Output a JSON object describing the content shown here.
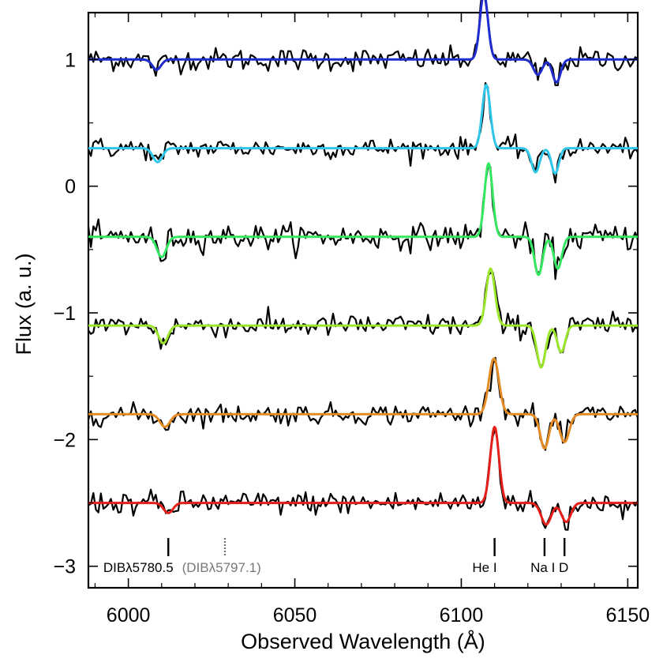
{
  "chart_data": {
    "type": "line",
    "xlabel": "Observed Wavelength (Å)",
    "ylabel": "Flux (a. u.)",
    "xlim": [
      5988,
      6153
    ],
    "ylim": [
      -3.17,
      1.37
    ],
    "x_ticks": [
      "6000",
      "6050",
      "6100",
      "6150"
    ],
    "x_tick_values": [
      6000,
      6050,
      6100,
      6150
    ],
    "y_ticks": [
      "1",
      "0",
      "−1",
      "−2",
      "−3"
    ],
    "y_tick_values": [
      1,
      0,
      -1,
      -2,
      -3
    ],
    "grid": false,
    "line_annotations": [
      {
        "label": "DIBλ5780.5",
        "x": 6012,
        "style": "solid",
        "color": "#000000",
        "text_x": 6003
      },
      {
        "label": "(DIBλ5797.1)",
        "x": 6029,
        "style": "dotted",
        "color": "#777777",
        "text_x": 6028
      },
      {
        "label": "He I",
        "x": 6110,
        "style": "solid",
        "color": "#000000",
        "text_x": 6107
      },
      {
        "label": "Na I D",
        "x": 6125,
        "style": "solid",
        "color": "#000000",
        "text_x": 6126.5
      },
      {
        "label": "",
        "x": 6131,
        "style": "solid",
        "color": "#000000",
        "text_x": null
      }
    ],
    "series": [
      {
        "color": "#1f2ccf",
        "baseline": 1.0,
        "noise": 0.045,
        "components": [
          [
            6008.5,
            -0.08,
            1.3
          ],
          [
            6106.8,
            0.52,
            1.2
          ],
          [
            6123.0,
            -0.12,
            1.3
          ],
          [
            6128.6,
            -0.18,
            1.2
          ]
        ]
      },
      {
        "color": "#2ec7ea",
        "baseline": 0.3,
        "noise": 0.04,
        "components": [
          [
            6008.8,
            -0.11,
            1.4
          ],
          [
            6107.5,
            0.5,
            1.2
          ],
          [
            6122.3,
            -0.19,
            1.2
          ],
          [
            6128.2,
            -0.2,
            1.1
          ]
        ]
      },
      {
        "color": "#33e860",
        "baseline": -0.4,
        "noise": 0.05,
        "components": [
          [
            6010.0,
            -0.16,
            1.4
          ],
          [
            6108.2,
            0.58,
            1.2
          ],
          [
            6123.2,
            -0.3,
            1.2
          ],
          [
            6129.0,
            -0.25,
            1.2
          ]
        ]
      },
      {
        "color": "#9be52b",
        "baseline": -1.1,
        "noise": 0.045,
        "components": [
          [
            6010.5,
            -0.14,
            1.4
          ],
          [
            6108.8,
            0.45,
            1.3
          ],
          [
            6124.0,
            -0.33,
            1.3
          ],
          [
            6130.0,
            -0.21,
            1.2
          ]
        ]
      },
      {
        "color": "#e48a22",
        "baseline": -1.8,
        "noise": 0.04,
        "components": [
          [
            6011.0,
            -0.1,
            1.5
          ],
          [
            6109.8,
            0.44,
            1.5
          ],
          [
            6125.0,
            -0.27,
            1.3
          ],
          [
            6131.0,
            -0.22,
            1.4
          ]
        ]
      },
      {
        "color": "#e41f1a",
        "baseline": -2.5,
        "noise": 0.045,
        "components": [
          [
            6012.0,
            -0.08,
            1.4
          ],
          [
            6110.0,
            0.6,
            1.3
          ],
          [
            6125.5,
            -0.17,
            1.5
          ],
          [
            6131.5,
            -0.15,
            1.4
          ]
        ]
      }
    ]
  }
}
